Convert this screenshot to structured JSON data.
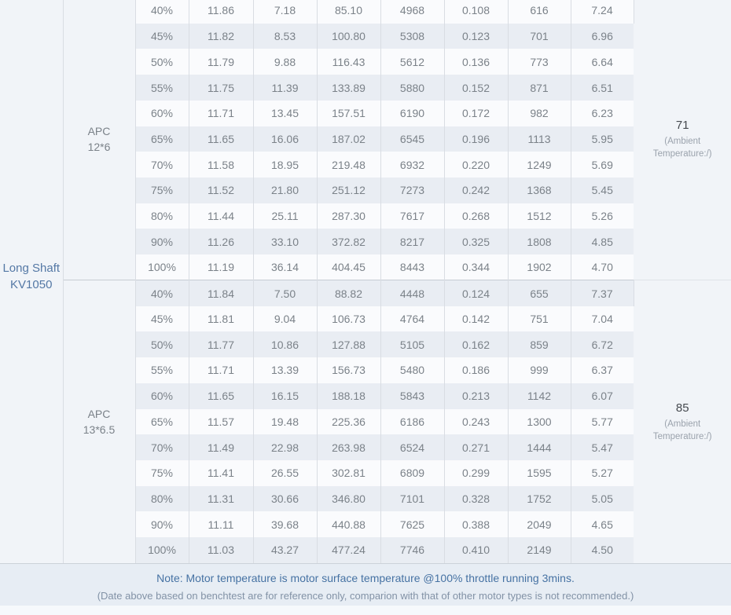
{
  "chart_data": {
    "type": "table",
    "motor": {
      "name_line1": "Long Shaft",
      "name_line2": "KV1050"
    },
    "sections": [
      {
        "propeller": "APC 12*6",
        "motor_temperature": "71",
        "temperature_caption_line1": "(Ambient",
        "temperature_caption_line2": "Temperature:/)",
        "rows": [
          [
            "40%",
            "11.86",
            "7.18",
            "85.10",
            "4968",
            "0.108",
            "616",
            "7.24"
          ],
          [
            "45%",
            "11.82",
            "8.53",
            "100.80",
            "5308",
            "0.123",
            "701",
            "6.96"
          ],
          [
            "50%",
            "11.79",
            "9.88",
            "116.43",
            "5612",
            "0.136",
            "773",
            "6.64"
          ],
          [
            "55%",
            "11.75",
            "11.39",
            "133.89",
            "5880",
            "0.152",
            "871",
            "6.51"
          ],
          [
            "60%",
            "11.71",
            "13.45",
            "157.51",
            "6190",
            "0.172",
            "982",
            "6.23"
          ],
          [
            "65%",
            "11.65",
            "16.06",
            "187.02",
            "6545",
            "0.196",
            "1113",
            "5.95"
          ],
          [
            "70%",
            "11.58",
            "18.95",
            "219.48",
            "6932",
            "0.220",
            "1249",
            "5.69"
          ],
          [
            "75%",
            "11.52",
            "21.80",
            "251.12",
            "7273",
            "0.242",
            "1368",
            "5.45"
          ],
          [
            "80%",
            "11.44",
            "25.11",
            "287.30",
            "7617",
            "0.268",
            "1512",
            "5.26"
          ],
          [
            "90%",
            "11.26",
            "33.10",
            "372.82",
            "8217",
            "0.325",
            "1808",
            "4.85"
          ],
          [
            "100%",
            "11.19",
            "36.14",
            "404.45",
            "8443",
            "0.344",
            "1902",
            "4.70"
          ]
        ]
      },
      {
        "propeller": "APC 13*6.5",
        "motor_temperature": "85",
        "temperature_caption_line1": "(Ambient",
        "temperature_caption_line2": "Temperature:/)",
        "rows": [
          [
            "40%",
            "11.84",
            "7.50",
            "88.82",
            "4448",
            "0.124",
            "655",
            "7.37"
          ],
          [
            "45%",
            "11.81",
            "9.04",
            "106.73",
            "4764",
            "0.142",
            "751",
            "7.04"
          ],
          [
            "50%",
            "11.77",
            "10.86",
            "127.88",
            "5105",
            "0.162",
            "859",
            "6.72"
          ],
          [
            "55%",
            "11.71",
            "13.39",
            "156.73",
            "5480",
            "0.186",
            "999",
            "6.37"
          ],
          [
            "60%",
            "11.65",
            "16.15",
            "188.18",
            "5843",
            "0.213",
            "1142",
            "6.07"
          ],
          [
            "65%",
            "11.57",
            "19.48",
            "225.36",
            "6186",
            "0.243",
            "1300",
            "5.77"
          ],
          [
            "70%",
            "11.49",
            "22.98",
            "263.98",
            "6524",
            "0.271",
            "1444",
            "5.47"
          ],
          [
            "75%",
            "11.41",
            "26.55",
            "302.81",
            "6809",
            "0.299",
            "1595",
            "5.27"
          ],
          [
            "80%",
            "11.31",
            "30.66",
            "346.80",
            "7101",
            "0.328",
            "1752",
            "5.05"
          ],
          [
            "90%",
            "11.11",
            "39.68",
            "440.88",
            "7625",
            "0.388",
            "2049",
            "4.65"
          ],
          [
            "100%",
            "11.03",
            "43.27",
            "477.24",
            "7746",
            "0.410",
            "2149",
            "4.50"
          ]
        ]
      }
    ],
    "layout_hints": {
      "striped_rows": true,
      "stripe_alternation_continues_across_sections": true
    }
  },
  "footer": {
    "note_line1": "Note: Motor temperature is motor surface temperature @100% throttle running 3mins.",
    "note_line2": "(Date above based on benchtest are for reference only, comparion with that of other motor types is not recommended.)"
  },
  "colors": {
    "row_light": "#fafbfd",
    "row_dark": "#e9edf3",
    "side_column_bg": "#f1f4f8",
    "cell_border": "#d9dde3",
    "section_border": "#c6ccd3",
    "motor_label_blue": "#5478a5",
    "table_text_gray": "#7b8289",
    "temperature_value": "#45494f",
    "temperature_caption": "#9aa2ac",
    "note_blue": "#4672a3",
    "note_gray": "#8292a6",
    "footer_bg": "#e7edf4"
  }
}
